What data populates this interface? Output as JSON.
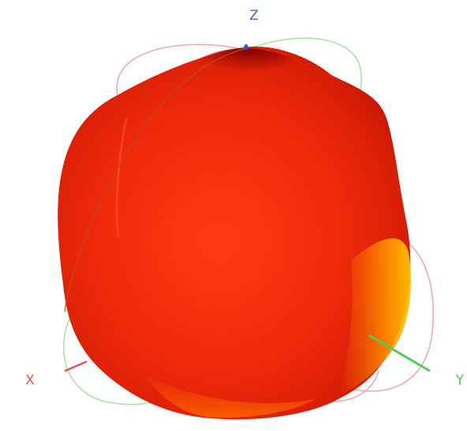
{
  "axes": {
    "x": {
      "label": "X",
      "color": "#e25555"
    },
    "y": {
      "label": "Y",
      "color": "#55cc55"
    },
    "z": {
      "label": "Z",
      "color": "#4466cc"
    }
  },
  "pattern": {
    "colormap": [
      "#7a0000",
      "#d01000",
      "#ff3b00",
      "#ff7a00",
      "#ffc400"
    ],
    "outline_colors": {
      "xz_plane": "#f0a0a0",
      "yz_plane": "#a0e0a0"
    }
  }
}
